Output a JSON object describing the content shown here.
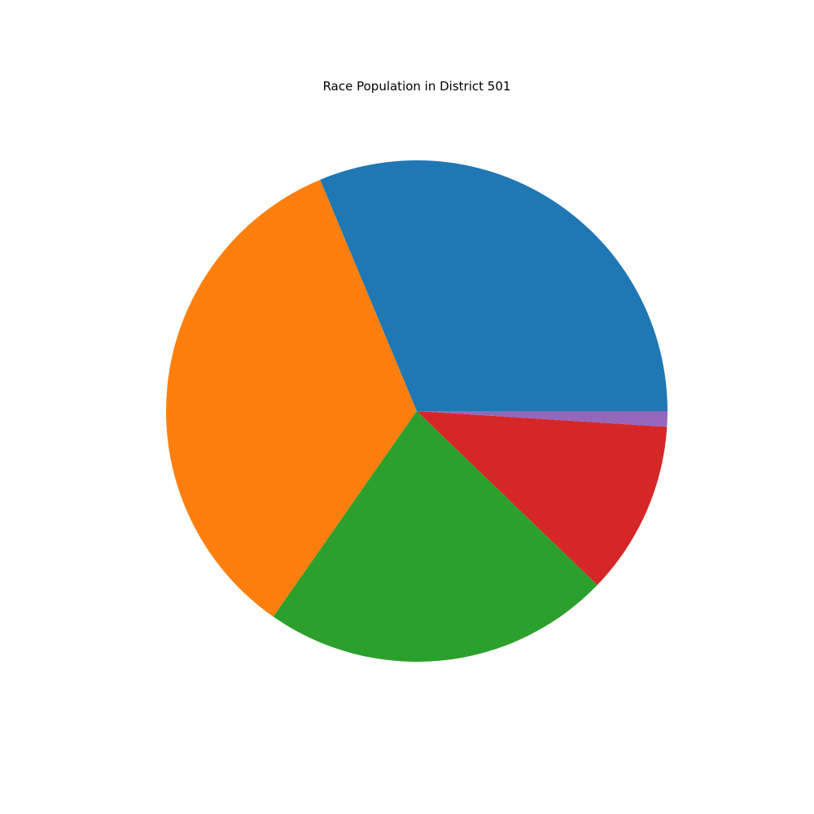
{
  "chart_data": {
    "type": "pie",
    "title": "Race Population in District 501",
    "start_angle_deg": 0,
    "direction": "counterclockwise",
    "legend": "none",
    "slices": [
      {
        "value": 31.3,
        "color": "#1f77b4"
      },
      {
        "value": 34.0,
        "color": "#ff7f0e"
      },
      {
        "value": 22.5,
        "color": "#2ca02c"
      },
      {
        "value": 11.2,
        "color": "#d62728"
      },
      {
        "value": 1.0,
        "color": "#9467bd"
      }
    ]
  }
}
